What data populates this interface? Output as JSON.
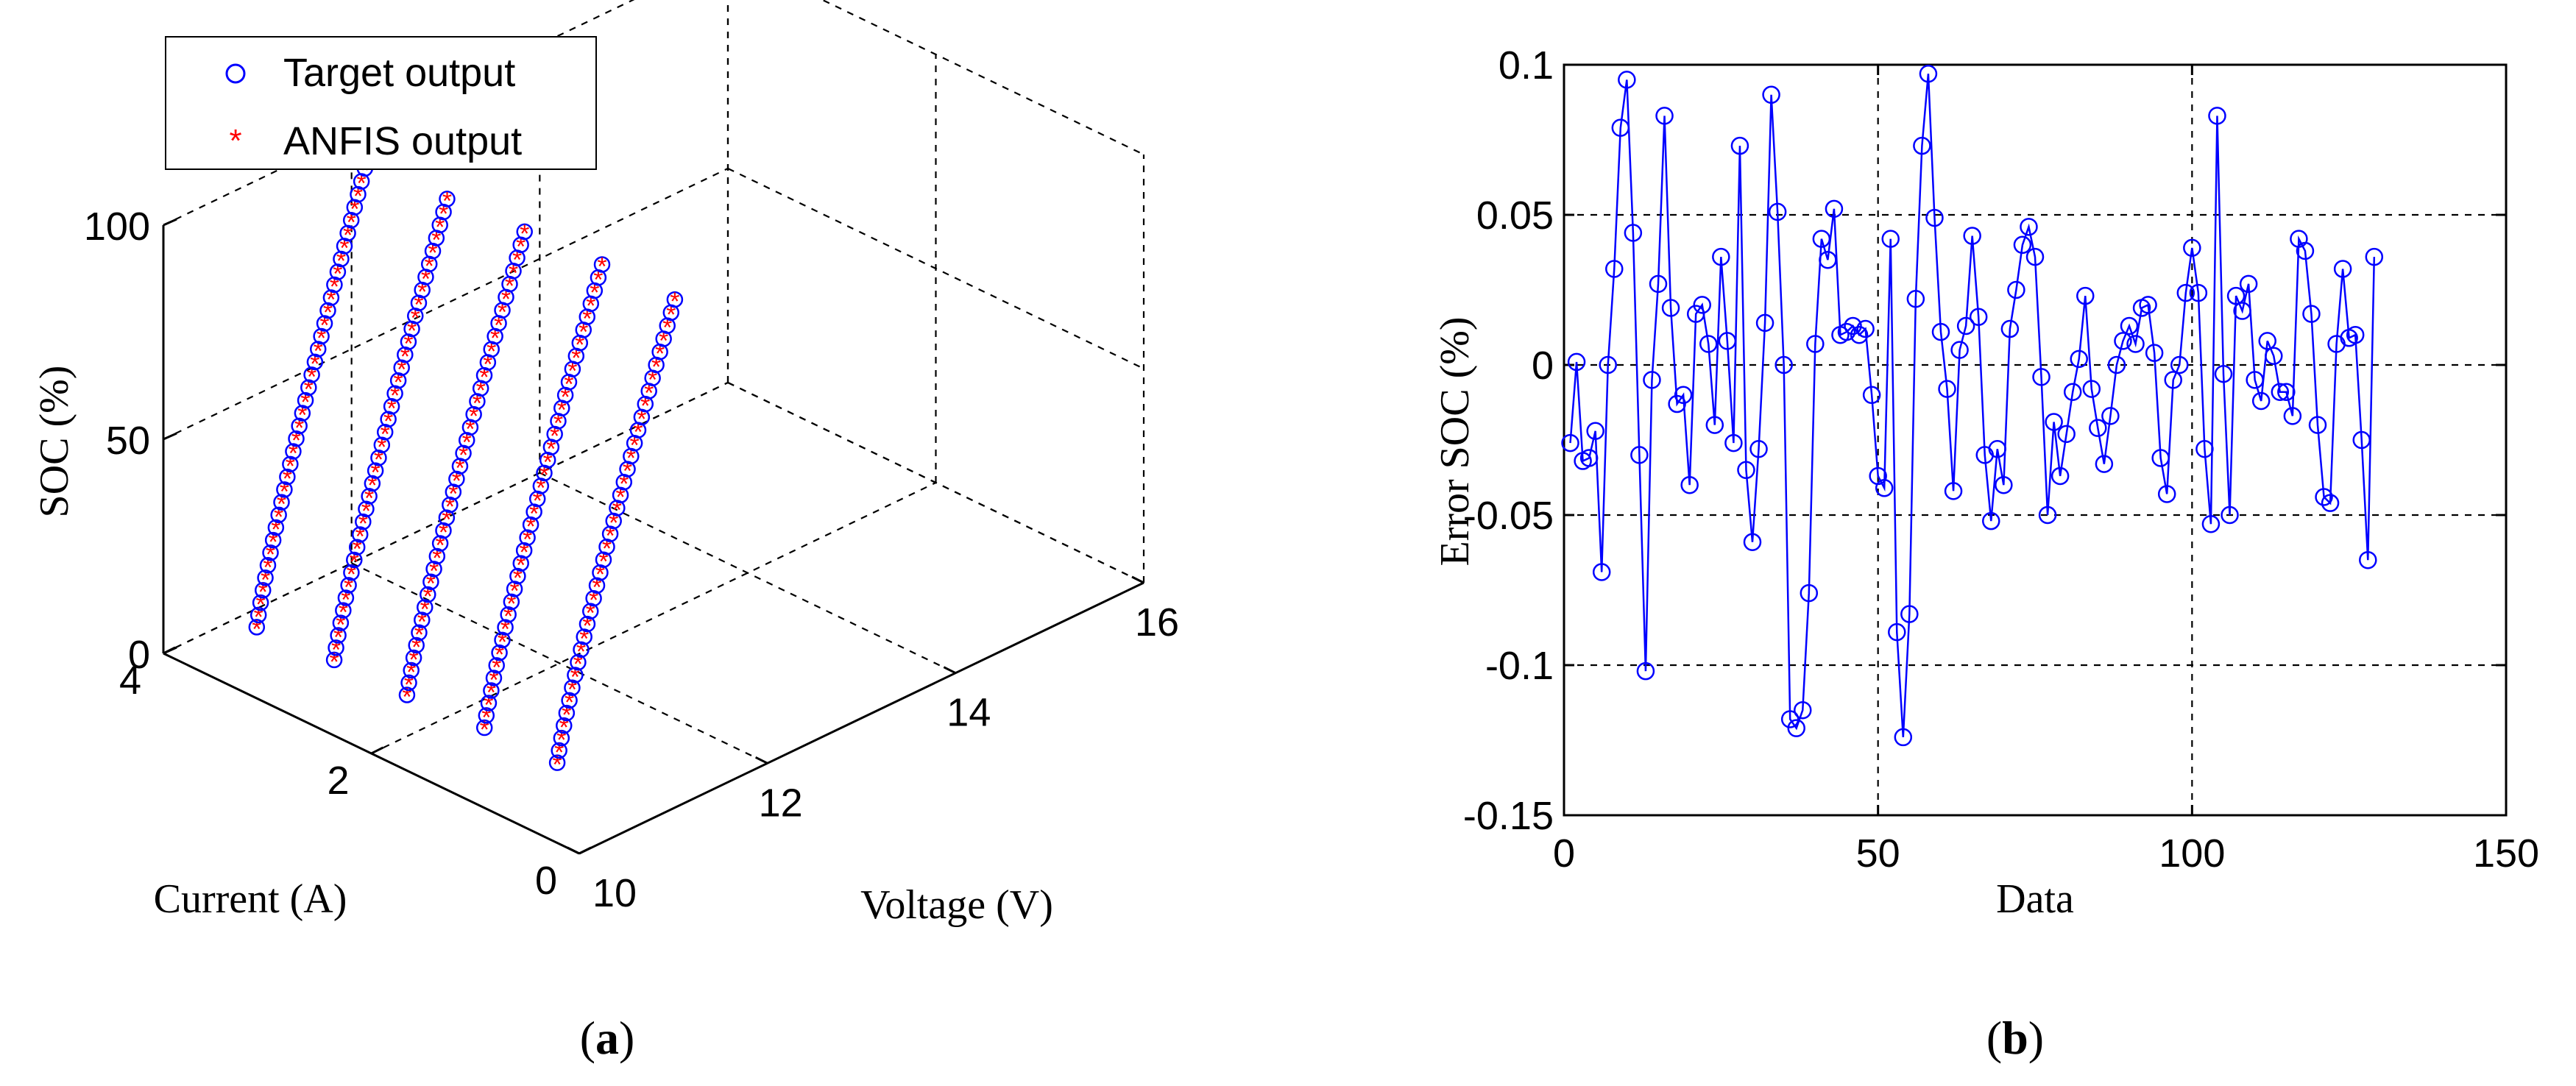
{
  "colors": {
    "target": "#0000ff",
    "anfis": "#ff0000",
    "error_line": "#0000ff",
    "grid": "#000000"
  },
  "chart_data": [
    {
      "type": "scatter3d",
      "panel_label": "(a)",
      "panel_letter": "a",
      "xlabel": "Current (A)",
      "ylabel": "Voltage (V)",
      "zlabel": "SOC (%)",
      "xlim": [
        0,
        4
      ],
      "ylim": [
        10,
        16
      ],
      "zlim": [
        0,
        100
      ],
      "xticks": [
        "0",
        "2",
        "4"
      ],
      "yticks": [
        "10",
        "12",
        "14",
        "16"
      ],
      "zticks": [
        "0",
        "50",
        "100"
      ],
      "grid": true,
      "legend": {
        "position": "top-left",
        "entries": [
          "Target output",
          "ANFIS output"
        ]
      },
      "series": [
        {
          "name": "Target output",
          "marker": "circle"
        },
        {
          "name": "ANFIS output",
          "marker": "star"
        }
      ],
      "curves": [
        {
          "current": 3.6,
          "v_start": 10.55,
          "v_end": 11.7,
          "soc_start": 5,
          "soc_end": 100,
          "points": 37
        },
        {
          "current": 2.9,
          "v_start": 10.6,
          "v_end": 11.8,
          "soc_start": 5,
          "soc_end": 100,
          "points": 37
        },
        {
          "current": 2.2,
          "v_start": 10.6,
          "v_end": 11.85,
          "soc_start": 5,
          "soc_end": 100,
          "points": 37
        },
        {
          "current": 1.5,
          "v_start": 10.65,
          "v_end": 11.9,
          "soc_start": 5,
          "soc_end": 100,
          "points": 37
        },
        {
          "current": 0.8,
          "v_start": 10.65,
          "v_end": 11.9,
          "soc_start": 5,
          "soc_end": 100,
          "points": 37
        }
      ]
    },
    {
      "type": "line",
      "panel_label": "(b)",
      "panel_letter": "b",
      "xlabel": "Data",
      "ylabel": "Error SOC (%)",
      "xlim": [
        0,
        150
      ],
      "ylim": [
        -0.15,
        0.1
      ],
      "xticks": [
        "0",
        "50",
        "100",
        "150"
      ],
      "yticks": [
        "-0.15",
        "-0.1",
        "-0.05",
        "0",
        "0.05",
        "0.1"
      ],
      "grid": true,
      "series": [
        {
          "name": "Error SOC",
          "marker": "circle",
          "x": [
            1,
            2,
            3,
            4,
            5,
            6,
            7,
            8,
            9,
            10,
            11,
            12,
            13,
            14,
            15,
            16,
            17,
            18,
            19,
            20,
            21,
            22,
            23,
            24,
            25,
            26,
            27,
            28,
            29,
            30,
            31,
            32,
            33,
            34,
            35,
            36,
            37,
            38,
            39,
            40,
            41,
            42,
            43,
            44,
            45,
            46,
            47,
            48,
            49,
            50,
            51,
            52,
            53,
            54,
            55,
            56,
            57,
            58,
            59,
            60,
            61,
            62,
            63,
            64,
            65,
            66,
            67,
            68,
            69,
            70,
            71,
            72,
            73,
            74,
            75,
            76,
            77,
            78,
            79,
            80,
            81,
            82,
            83,
            84,
            85,
            86,
            87,
            88,
            89,
            90,
            91,
            92,
            93,
            94,
            95,
            96,
            97,
            98,
            99,
            100,
            101,
            102,
            103,
            104,
            105,
            106,
            107,
            108,
            109,
            110,
            111,
            112,
            113,
            114,
            115,
            116,
            117,
            118,
            119,
            120,
            121,
            122,
            123,
            124,
            125,
            126,
            127,
            128,
            129
          ],
          "y": [
            -0.026,
            0.001,
            -0.032,
            -0.031,
            -0.022,
            -0.069,
            0.0,
            0.032,
            0.079,
            0.095,
            0.044,
            -0.03,
            -0.102,
            -0.005,
            0.027,
            0.083,
            0.019,
            -0.013,
            -0.01,
            -0.04,
            0.017,
            0.02,
            0.007,
            -0.02,
            0.036,
            0.008,
            -0.026,
            0.073,
            -0.035,
            -0.059,
            -0.028,
            0.014,
            0.09,
            0.051,
            0.0,
            -0.118,
            -0.121,
            -0.115,
            -0.076,
            0.007,
            0.042,
            0.035,
            0.052,
            0.01,
            0.011,
            0.013,
            0.01,
            0.012,
            -0.01,
            -0.037,
            -0.041,
            0.042,
            -0.089,
            -0.124,
            -0.083,
            0.022,
            0.073,
            0.097,
            0.049,
            0.011,
            -0.008,
            -0.042,
            0.005,
            0.013,
            0.043,
            0.016,
            -0.03,
            -0.052,
            -0.028,
            -0.04,
            0.012,
            0.025,
            0.04,
            0.046,
            0.036,
            -0.004,
            -0.05,
            -0.019,
            -0.037,
            -0.023,
            -0.009,
            0.002,
            0.023,
            -0.008,
            -0.021,
            -0.033,
            -0.017,
            0.0,
            0.008,
            0.013,
            0.007,
            0.019,
            0.02,
            0.004,
            -0.031,
            -0.043,
            -0.005,
            0.0,
            0.024,
            0.039,
            0.024,
            -0.028,
            -0.053,
            0.083,
            -0.003,
            -0.05,
            0.023,
            0.018,
            0.027,
            -0.005,
            -0.012,
            0.008,
            0.003,
            -0.009,
            -0.009,
            -0.017,
            0.042,
            0.038,
            0.017,
            -0.02,
            -0.044,
            -0.046,
            0.007,
            0.032,
            0.009,
            0.01,
            -0.025,
            -0.065,
            0.036
          ]
        }
      ]
    }
  ]
}
